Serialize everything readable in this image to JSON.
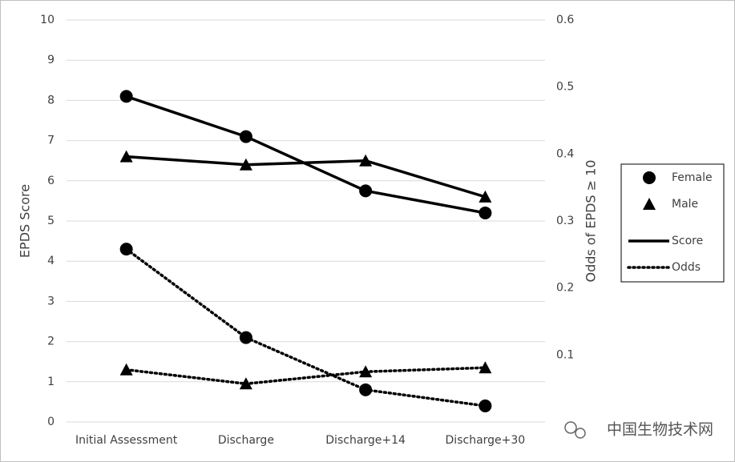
{
  "chart_data": {
    "type": "line",
    "categories": [
      "Initial Assessment",
      "Discharge",
      "Discharge+14",
      "Discharge+30"
    ],
    "y_label": "EPDS Score",
    "y2_label": "Odds of EPDS ≥ 10",
    "ylim": [
      0,
      10
    ],
    "yticks": [
      0,
      1,
      2,
      3,
      4,
      5,
      6,
      7,
      8,
      9,
      10
    ],
    "y2lim": [
      0,
      0.6
    ],
    "y2ticks": [
      0.1,
      0.2,
      0.3,
      0.4,
      0.5,
      0.6
    ],
    "grid": true,
    "series": [
      {
        "marker": "circle",
        "dash": "solid",
        "color": "#000000",
        "values": [
          8.1,
          7.1,
          5.75,
          5.2
        ]
      },
      {
        "marker": "triangle",
        "dash": "solid",
        "color": "#000000",
        "values": [
          6.6,
          6.4,
          6.5,
          5.6
        ]
      },
      {
        "marker": "circle",
        "dash": "dotted",
        "color": "#000000",
        "axis": "y2",
        "values": [
          0.258,
          0.126,
          0.048,
          0.024
        ]
      },
      {
        "marker": "triangle",
        "dash": "dotted",
        "color": "#000000",
        "axis": "y2",
        "values": [
          0.078,
          0.057,
          0.075,
          0.081
        ]
      }
    ],
    "legend": {
      "position": "right",
      "markers": [
        {
          "label": "Female",
          "shape": "circle"
        },
        {
          "label": "Male",
          "shape": "triangle"
        }
      ],
      "lines": [
        {
          "label": "Score",
          "dash": "solid"
        },
        {
          "label": "Odds",
          "dash": "dotted"
        }
      ]
    }
  },
  "watermark": "中国生物技术网"
}
